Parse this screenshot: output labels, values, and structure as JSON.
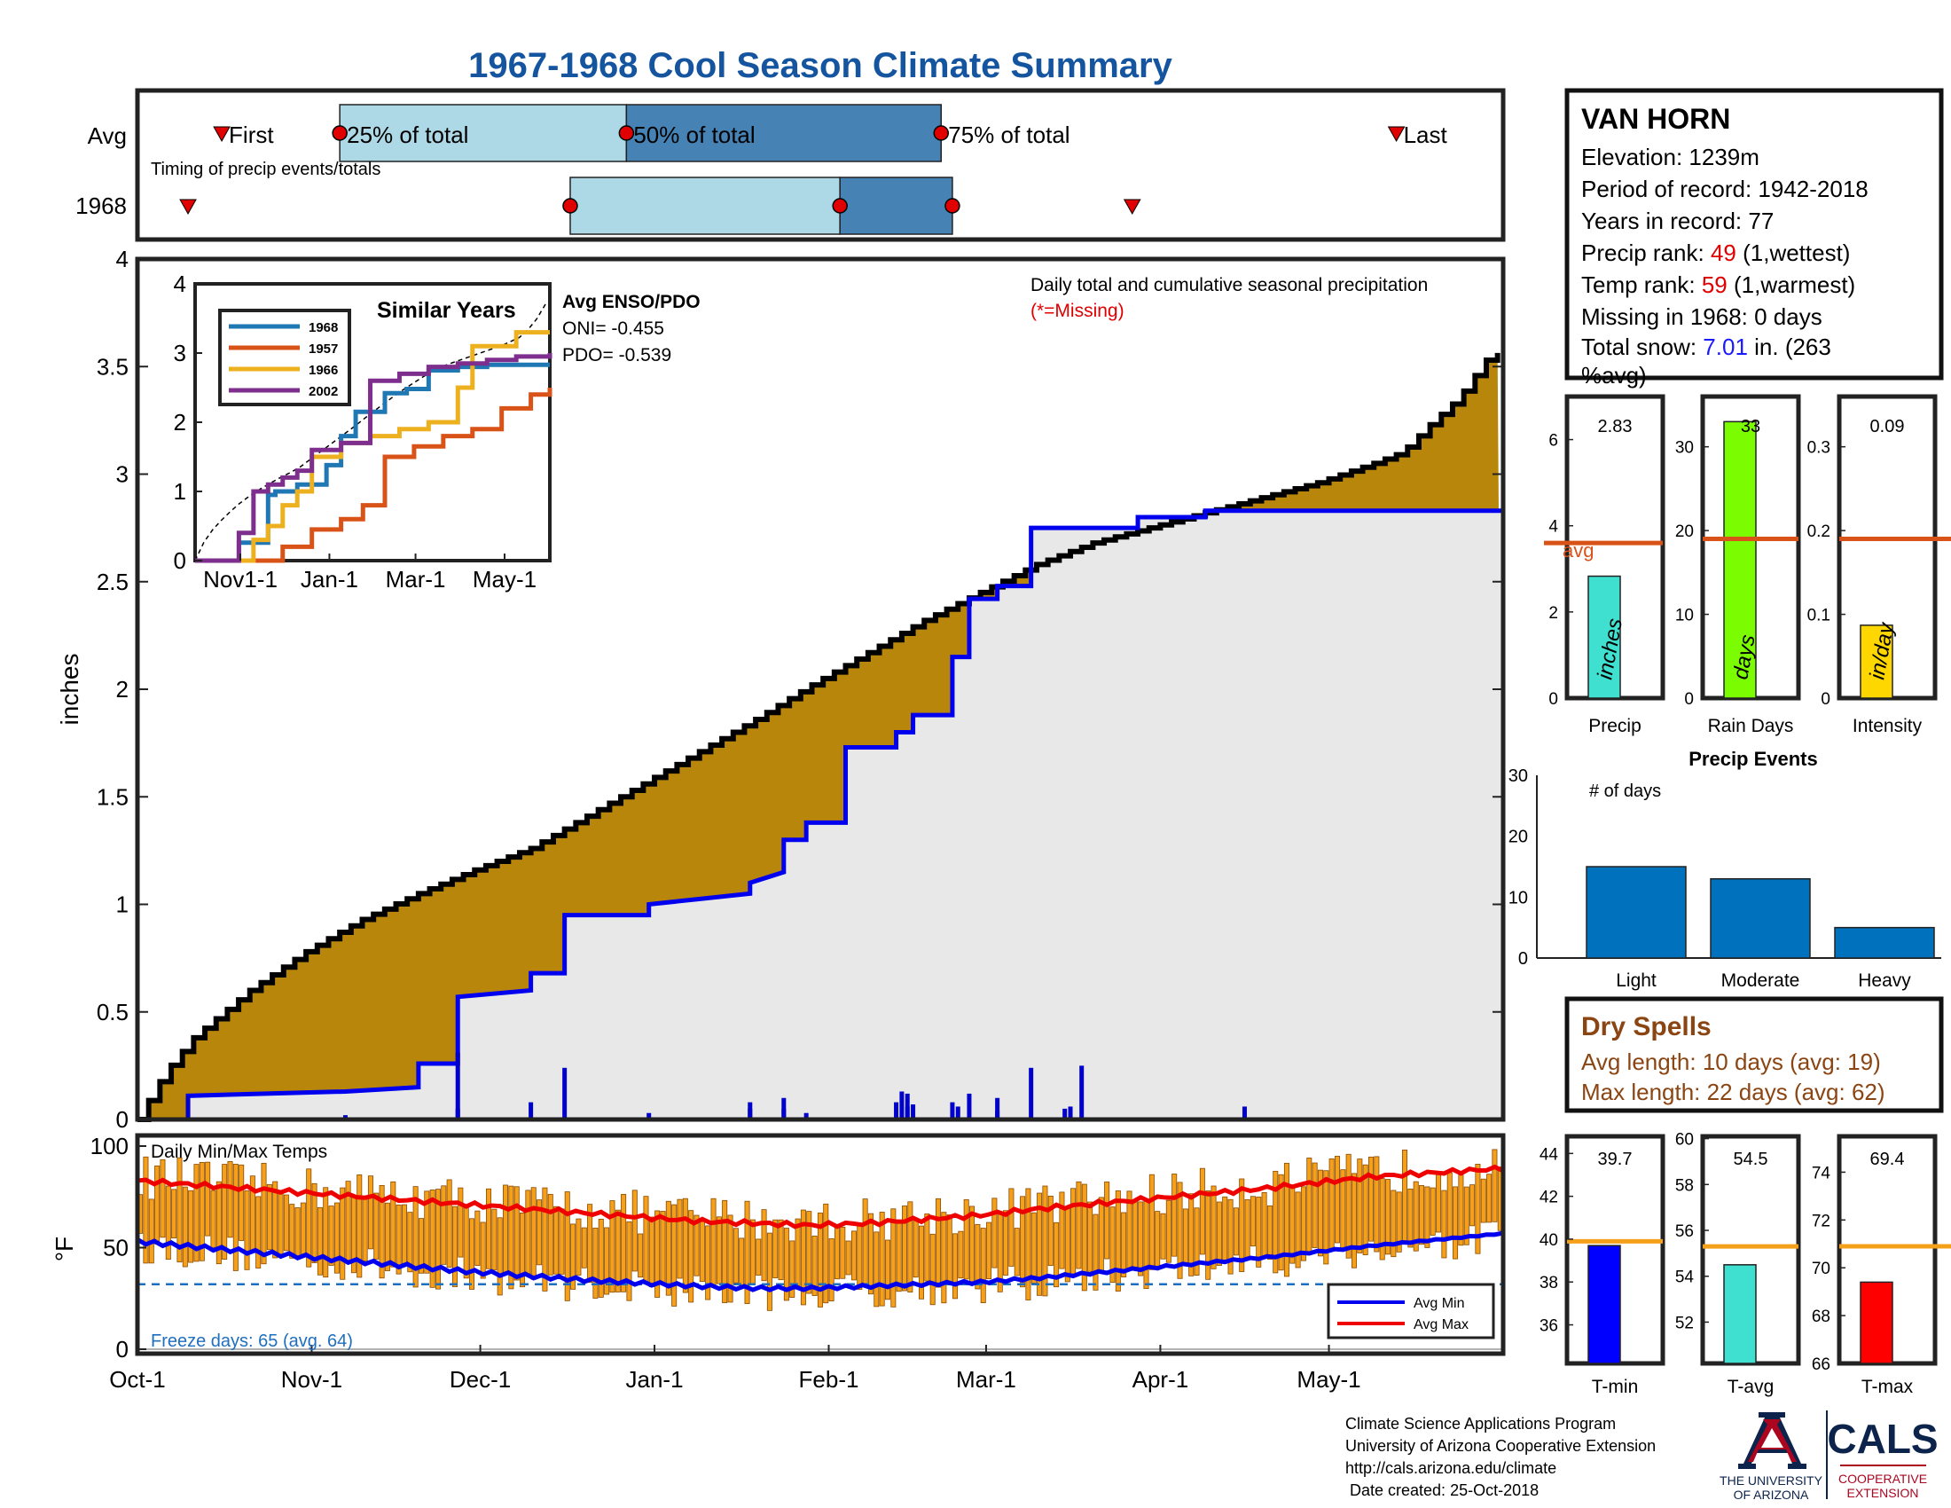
{
  "title": "1967-1968 Cool Season Climate Summary",
  "timing": {
    "row_labels": [
      "Avg",
      "1968"
    ],
    "caption": "Timing of precip events/totals",
    "avg_labels": {
      "first": "First",
      "p25": "25% of total",
      "p50": "50% of total",
      "p75": "75% of total",
      "last": "Last"
    },
    "avg": {
      "first": 15,
      "p25": 36,
      "p50": 87,
      "p75": 143,
      "last": 224
    },
    "season": {
      "first": 9,
      "p25": 77,
      "p50": 125,
      "p75": 145,
      "last": 177
    }
  },
  "station": {
    "name": "VAN HORN",
    "elevation": "Elevation: 1239m",
    "period": "Period of record: 1942-2018",
    "years": "Years in record: 77",
    "precip_rank_label": "Precip rank: ",
    "precip_rank_value": "49",
    "precip_rank_suffix": " (1,wettest)",
    "temp_rank_label": "Temp rank: ",
    "temp_rank_value": "59",
    "temp_rank_suffix": " (1,warmest)",
    "missing": "Missing in 1968: 0 days",
    "snow_label": "Total snow: ",
    "snow_value": "7.01",
    "snow_suffix": " in. (263",
    "snow_suffix2": "%avg)"
  },
  "main": {
    "ylabel": "inches",
    "annotation": "Daily total and cumulative seasonal precipitation",
    "missing_note": "(*=Missing)",
    "enso_title": "Avg ENSO/PDO",
    "oni": "ONI= -0.455",
    "pdo": "PDO= -0.539"
  },
  "similar": {
    "title": "Similar Years",
    "legend": [
      "1968",
      "1957",
      "1966",
      "2002"
    ],
    "colors": [
      "#1f77b4",
      "#d95319",
      "#edb120",
      "#7e2f8e"
    ],
    "xticks": [
      "Nov1-1",
      "Jan-1",
      "Mar-1",
      "May-1"
    ],
    "yticks": [
      "0",
      "1",
      "2",
      "3",
      "4"
    ]
  },
  "temps": {
    "label": "Daily Min/Max Temps",
    "ylabel": "°F",
    "freeze": "Freeze days: 65 (avg. 64)",
    "legend": [
      "Avg Min",
      "Avg Max"
    ],
    "xticks": [
      "Oct-1",
      "Nov-1",
      "Dec-1",
      "Jan-1",
      "Feb-1",
      "Mar-1",
      "Apr-1",
      "May-1"
    ]
  },
  "mini_bars": [
    {
      "xlabel": "Precip",
      "value_label": "2.83",
      "unit": "inches",
      "avg_label": "avg",
      "color": "#40e0d0",
      "value": 2.83,
      "avg": 3.6,
      "ymax": 7,
      "ticks": [
        "0",
        "2",
        "4",
        "6"
      ]
    },
    {
      "xlabel": "Rain Days",
      "value_label": "33",
      "unit": "days",
      "color": "#7cfc00",
      "value": 33,
      "avg": 19,
      "ymax": 36,
      "ticks": [
        "0",
        "10",
        "20",
        "30"
      ]
    },
    {
      "xlabel": "Intensity",
      "value_label": "0.09",
      "unit": "in/day",
      "color": "#ffd700",
      "value": 0.087,
      "avg": 0.19,
      "ymax": 0.36,
      "ticks": [
        "0",
        "0.1",
        "0.2",
        "0.3"
      ]
    }
  ],
  "events": {
    "title": "Precip Events",
    "note": "# of days",
    "categories": [
      "Light",
      "Moderate",
      "Heavy"
    ],
    "values": [
      15,
      13,
      5
    ],
    "yticks": [
      "0",
      "10",
      "20",
      "30"
    ]
  },
  "dry": {
    "title": "Dry Spells",
    "avg_line": "Avg length: 10 days (avg: 19)",
    "max_line": "Max length: 22 days (avg: 62)"
  },
  "temp_bars": [
    {
      "xlabel": "T-min",
      "value_label": "39.7",
      "color": "#0000ff",
      "value": 39.7,
      "avg": 39.9,
      "ymin": 34.2,
      "ymax": 44.8,
      "ticks": [
        "36",
        "38",
        "40",
        "42",
        "44"
      ]
    },
    {
      "xlabel": "T-avg",
      "value_label": "54.5",
      "color": "#40e0d0",
      "value": 54.5,
      "avg": 55.3,
      "ymin": 50.2,
      "ymax": 60.1,
      "ticks": [
        "52",
        "54",
        "56",
        "58",
        "60"
      ]
    },
    {
      "xlabel": "T-max",
      "value_label": "69.4",
      "color": "#ff0000",
      "value": 69.4,
      "avg": 70.9,
      "ymin": 66,
      "ymax": 75.5,
      "ticks": [
        "66",
        "68",
        "70",
        "72",
        "74"
      ]
    }
  ],
  "footer": {
    "line1": "Climate Science Applications Program",
    "line2": "University of Arizona Cooperative Extension",
    "line3": "http://cals.arizona.edu/climate",
    "line4": " Date created: 25-Oct-2018"
  },
  "logo": {
    "univ1": "THE UNIVERSITY",
    "univ2": "OF ARIZONA",
    "cals": "CALS",
    "coop1": "COOPERATIVE",
    "coop2": "EXTENSION"
  },
  "chart_data": [
    {
      "type": "area",
      "title": "Daily total and cumulative seasonal precipitation",
      "xlabel": "",
      "ylabel": "inches",
      "xlim": [
        0,
        243
      ],
      "ylim": [
        0,
        4
      ],
      "x_ticks": [
        "Oct-1",
        "Nov-1",
        "Dec-1",
        "Jan-1",
        "Feb-1",
        "Mar-1",
        "Apr-1",
        "May-1"
      ],
      "avg_cumulative": {
        "x": [
          0,
          5,
          10,
          20,
          30,
          40,
          50,
          60,
          70,
          80,
          90,
          100,
          110,
          120,
          130,
          140,
          150,
          160,
          170,
          180,
          190,
          200,
          210,
          220,
          225,
          230,
          235,
          240,
          243
        ],
        "y": [
          0,
          0.22,
          0.38,
          0.6,
          0.78,
          0.93,
          1.05,
          1.16,
          1.26,
          1.41,
          1.56,
          1.71,
          1.86,
          2.02,
          2.17,
          2.32,
          2.45,
          2.58,
          2.68,
          2.75,
          2.82,
          2.89,
          2.96,
          3.05,
          3.1,
          3.23,
          3.35,
          3.53,
          3.58
        ]
      },
      "season_cumulative": {
        "x": [
          0,
          9,
          9,
          37,
          50,
          50,
          57,
          57,
          70,
          70,
          76,
          76,
          91,
          91,
          109,
          109,
          115,
          115,
          119,
          119,
          126,
          126,
          135,
          135,
          138,
          138,
          145,
          145,
          148,
          148,
          153,
          153,
          159,
          159,
          178,
          178,
          190,
          190,
          217,
          217,
          243
        ],
        "y": [
          0,
          0,
          0.11,
          0.13,
          0.15,
          0.26,
          0.26,
          0.57,
          0.6,
          0.68,
          0.68,
          0.95,
          0.95,
          1.0,
          1.05,
          1.1,
          1.15,
          1.3,
          1.3,
          1.38,
          1.38,
          1.73,
          1.73,
          1.8,
          1.8,
          1.88,
          1.88,
          2.15,
          2.15,
          2.42,
          2.42,
          2.48,
          2.48,
          2.75,
          2.75,
          2.8,
          2.8,
          2.83,
          2.83,
          2.83,
          2.83
        ]
      },
      "daily_precip": {
        "x": [
          9,
          37,
          57,
          57,
          70,
          76,
          91,
          109,
          109,
          115,
          115,
          119,
          135,
          136,
          137,
          137,
          138,
          145,
          146,
          148,
          153,
          153,
          159,
          165,
          166,
          168,
          197
        ],
        "y": [
          0.11,
          0.02,
          0.31,
          0.05,
          0.08,
          0.24,
          0.03,
          0.08,
          0.05,
          0.1,
          0.05,
          0.03,
          0.08,
          0.13,
          0.12,
          0.06,
          0.07,
          0.08,
          0.06,
          0.12,
          0.04,
          0.1,
          0.24,
          0.05,
          0.06,
          0.25,
          0.06
        ]
      }
    },
    {
      "type": "line",
      "title": "Similar Years",
      "xlabel": "",
      "ylabel": "",
      "x_ticks": [
        "Nov1-1",
        "Jan-1",
        "Mar-1",
        "May-1"
      ],
      "ylim": [
        0,
        4
      ],
      "series": [
        {
          "name": "1968",
          "x": [
            0,
            30,
            30,
            50,
            50,
            55,
            70,
            90,
            100,
            110,
            130,
            145,
            160,
            180,
            200,
            243
          ],
          "y": [
            0,
            0.13,
            0.26,
            0.6,
            0.95,
            1.0,
            1.1,
            1.38,
            1.8,
            2.15,
            2.42,
            2.48,
            2.75,
            2.8,
            2.83,
            2.83
          ]
        },
        {
          "name": "1957",
          "x": [
            0,
            60,
            80,
            100,
            115,
            130,
            150,
            170,
            190,
            210,
            230,
            243
          ],
          "y": [
            0,
            0.2,
            0.45,
            0.6,
            0.8,
            1.5,
            1.65,
            1.8,
            1.9,
            2.2,
            2.4,
            2.5
          ]
        },
        {
          "name": "1966",
          "x": [
            0,
            40,
            50,
            60,
            70,
            80,
            100,
            120,
            140,
            160,
            180,
            190,
            200,
            220,
            243
          ],
          "y": [
            0,
            0.3,
            0.5,
            0.8,
            1.0,
            1.5,
            1.7,
            1.8,
            1.9,
            2.0,
            2.5,
            3.1,
            3.1,
            3.3,
            3.3
          ]
        },
        {
          "name": "2002",
          "x": [
            0,
            30,
            40,
            50,
            60,
            70,
            80,
            100,
            120,
            140,
            160,
            180,
            200,
            220,
            243
          ],
          "y": [
            0,
            0.4,
            1.0,
            1.1,
            1.2,
            1.3,
            1.6,
            1.7,
            2.6,
            2.7,
            2.8,
            2.85,
            2.9,
            2.95,
            3.0
          ]
        }
      ]
    },
    {
      "type": "bar",
      "title": "Daily Min/Max Temps",
      "ylabel": "°F",
      "ylim": [
        0,
        100
      ],
      "x_ticks": [
        "Oct-1",
        "Nov-1",
        "Dec-1",
        "Jan-1",
        "Feb-1",
        "Mar-1",
        "Apr-1",
        "May-1"
      ],
      "avg_max": {
        "x": [
          0,
          20,
          40,
          60,
          80,
          100,
          110,
          120,
          130,
          140,
          150,
          160,
          180,
          200,
          220,
          243
        ],
        "y": [
          83,
          79,
          75,
          71,
          67,
          63,
          62,
          61,
          62,
          64,
          66,
          69,
          74,
          79,
          85,
          89
        ]
      },
      "avg_min": {
        "x": [
          0,
          20,
          40,
          60,
          80,
          100,
          110,
          120,
          130,
          140,
          150,
          160,
          180,
          200,
          220,
          243
        ],
        "y": [
          53,
          48,
          43,
          38,
          34,
          31,
          30,
          30,
          31,
          32,
          33,
          35,
          40,
          45,
          51,
          57
        ]
      },
      "freeze_line": 32
    }
  ]
}
